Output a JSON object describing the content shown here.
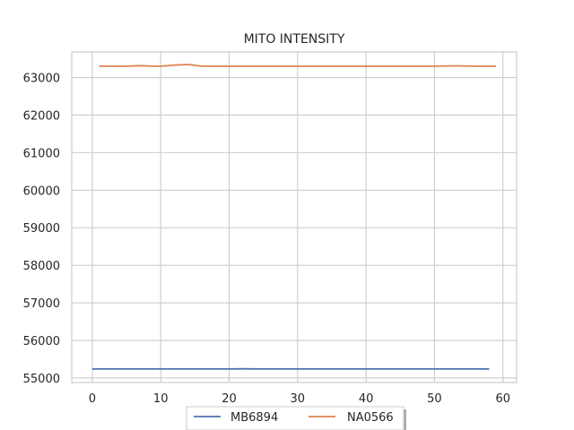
{
  "chart_data": {
    "type": "line",
    "title": "MITO INTENSITY",
    "xlabel": "",
    "ylabel": "",
    "xlim": [
      -3,
      62
    ],
    "ylim": [
      54880,
      63680
    ],
    "xticks": [
      0,
      10,
      20,
      30,
      40,
      50,
      60
    ],
    "yticks": [
      55000,
      56000,
      57000,
      58000,
      59000,
      60000,
      61000,
      62000,
      63000
    ],
    "grid": true,
    "legend_position": "bottom-center",
    "series": [
      {
        "name": "MB6894",
        "color": "#4c72b0",
        "points": [
          [
            0,
            55240
          ],
          [
            5,
            55240
          ],
          [
            10,
            55240
          ],
          [
            15,
            55240
          ],
          [
            20,
            55240
          ],
          [
            22,
            55245
          ],
          [
            25,
            55240
          ],
          [
            30,
            55240
          ],
          [
            35,
            55240
          ],
          [
            40,
            55240
          ],
          [
            45,
            55240
          ],
          [
            50,
            55240
          ],
          [
            55,
            55240
          ],
          [
            58,
            55240
          ]
        ]
      },
      {
        "name": "NA0566",
        "color": "#dd8452",
        "points": [
          [
            1,
            63300
          ],
          [
            3,
            63300
          ],
          [
            5,
            63300
          ],
          [
            7,
            63315
          ],
          [
            9,
            63300
          ],
          [
            10,
            63300
          ],
          [
            12,
            63330
          ],
          [
            14,
            63345
          ],
          [
            16,
            63300
          ],
          [
            18,
            63300
          ],
          [
            20,
            63300
          ],
          [
            25,
            63300
          ],
          [
            30,
            63300
          ],
          [
            35,
            63300
          ],
          [
            40,
            63300
          ],
          [
            45,
            63300
          ],
          [
            50,
            63300
          ],
          [
            53,
            63310
          ],
          [
            56,
            63300
          ],
          [
            59,
            63300
          ]
        ]
      }
    ]
  }
}
